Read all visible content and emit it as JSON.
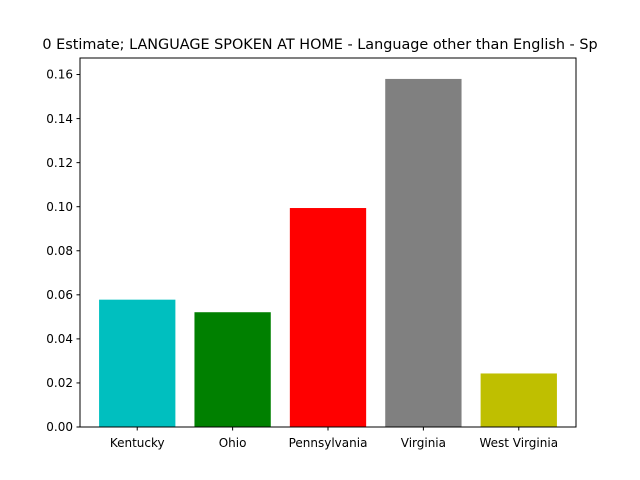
{
  "chart_data": {
    "type": "bar",
    "title": "0 Estimate; LANGUAGE SPOKEN AT HOME - Language other than English - Sp",
    "xlabel": "",
    "ylabel": "",
    "categories": [
      "Kentucky",
      "Ohio",
      "Pennsylvania",
      "Virginia",
      "West Virginia"
    ],
    "values": [
      0.0578,
      0.0521,
      0.0994,
      0.158,
      0.0243
    ],
    "colors": [
      "#00bfbf",
      "#008000",
      "#ff0000",
      "#808080",
      "#bfbf00"
    ],
    "ylim": [
      0,
      0.1675
    ],
    "yticks": [
      0.0,
      0.02,
      0.04,
      0.06,
      0.08,
      0.1,
      0.12,
      0.14,
      0.16
    ],
    "ytick_labels": [
      "0.00",
      "0.02",
      "0.04",
      "0.06",
      "0.08",
      "0.10",
      "0.12",
      "0.14",
      "0.16"
    ],
    "grid": false,
    "legend": "none"
  }
}
